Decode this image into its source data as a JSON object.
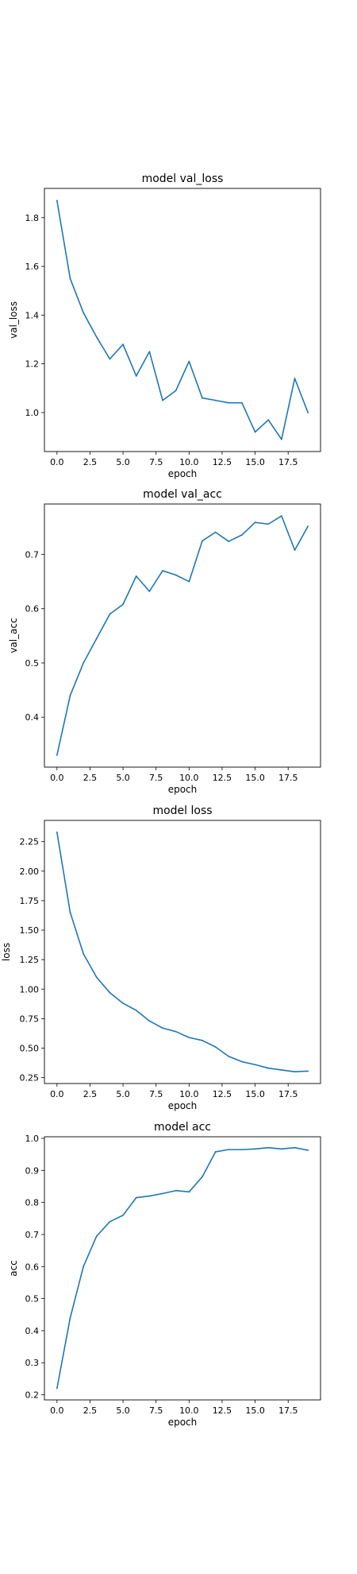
{
  "style": {
    "line_color": "#1f77b4",
    "frame_color": "#000000",
    "background": "#ffffff"
  },
  "chart_data": [
    {
      "type": "line",
      "title": "model val_loss",
      "xlabel": "epoch",
      "ylabel": "val_loss",
      "grid": false,
      "xlim": [
        -0.95,
        19.95
      ],
      "ylim": [
        0.84,
        1.92
      ],
      "xticks": [
        0.0,
        2.5,
        5.0,
        7.5,
        10.0,
        12.5,
        15.0,
        17.5
      ],
      "xtick_labels": [
        "0.0",
        "2.5",
        "5.0",
        "7.5",
        "10.0",
        "12.5",
        "15.0",
        "17.5"
      ],
      "yticks": [
        1.0,
        1.2,
        1.4,
        1.6,
        1.8
      ],
      "ytick_labels": [
        "1.0",
        "1.2",
        "1.4",
        "1.6",
        "1.8"
      ],
      "x": [
        0,
        1,
        2,
        3,
        4,
        5,
        6,
        7,
        8,
        9,
        10,
        11,
        12,
        13,
        14,
        15,
        16,
        17,
        18,
        19
      ],
      "series": [
        {
          "values": [
            1.87,
            1.55,
            1.41,
            1.31,
            1.22,
            1.28,
            1.15,
            1.25,
            1.05,
            1.09,
            1.21,
            1.06,
            1.05,
            1.04,
            1.04,
            0.92,
            0.97,
            0.89,
            1.14,
            1.0
          ]
        }
      ]
    },
    {
      "type": "line",
      "title": "model val_acc",
      "xlabel": "epoch",
      "ylabel": "val_acc",
      "grid": false,
      "xlim": [
        -0.95,
        19.95
      ],
      "ylim": [
        0.308,
        0.793
      ],
      "xticks": [
        0.0,
        2.5,
        5.0,
        7.5,
        10.0,
        12.5,
        15.0,
        17.5
      ],
      "xtick_labels": [
        "0.0",
        "2.5",
        "5.0",
        "7.5",
        "10.0",
        "12.5",
        "15.0",
        "17.5"
      ],
      "yticks": [
        0.4,
        0.5,
        0.6,
        0.7
      ],
      "ytick_labels": [
        "0.4",
        "0.5",
        "0.6",
        "0.7"
      ],
      "x": [
        0,
        1,
        2,
        3,
        4,
        5,
        6,
        7,
        8,
        9,
        10,
        11,
        12,
        13,
        14,
        15,
        16,
        17,
        18,
        19
      ],
      "series": [
        {
          "values": [
            0.33,
            0.44,
            0.5,
            0.545,
            0.59,
            0.608,
            0.66,
            0.632,
            0.67,
            0.662,
            0.65,
            0.725,
            0.741,
            0.724,
            0.736,
            0.759,
            0.756,
            0.771,
            0.708,
            0.752
          ]
        }
      ]
    },
    {
      "type": "line",
      "title": "model loss",
      "xlabel": "epoch",
      "ylabel": "loss",
      "grid": false,
      "xlim": [
        -0.95,
        19.95
      ],
      "ylim": [
        0.2,
        2.43
      ],
      "xticks": [
        0.0,
        2.5,
        5.0,
        7.5,
        10.0,
        12.5,
        15.0,
        17.5
      ],
      "xtick_labels": [
        "0.0",
        "2.5",
        "5.0",
        "7.5",
        "10.0",
        "12.5",
        "15.0",
        "17.5"
      ],
      "yticks": [
        0.25,
        0.5,
        0.75,
        1.0,
        1.25,
        1.5,
        1.75,
        2.0,
        2.25
      ],
      "ytick_labels": [
        "0.25",
        "0.50",
        "0.75",
        "1.00",
        "1.25",
        "1.50",
        "1.75",
        "2.00",
        "2.25"
      ],
      "x": [
        0,
        1,
        2,
        3,
        4,
        5,
        6,
        7,
        8,
        9,
        10,
        11,
        12,
        13,
        14,
        15,
        16,
        17,
        18,
        19
      ],
      "series": [
        {
          "values": [
            2.33,
            1.65,
            1.3,
            1.1,
            0.97,
            0.88,
            0.82,
            0.73,
            0.67,
            0.64,
            0.59,
            0.565,
            0.51,
            0.43,
            0.385,
            0.36,
            0.33,
            0.315,
            0.3,
            0.305
          ]
        }
      ]
    },
    {
      "type": "line",
      "title": "model acc",
      "xlabel": "epoch",
      "ylabel": "acc",
      "grid": false,
      "xlim": [
        -0.95,
        19.95
      ],
      "ylim": [
        0.184,
        1.005
      ],
      "xticks": [
        0.0,
        2.5,
        5.0,
        7.5,
        10.0,
        12.5,
        15.0,
        17.5
      ],
      "xtick_labels": [
        "0.0",
        "2.5",
        "5.0",
        "7.5",
        "10.0",
        "12.5",
        "15.0",
        "17.5"
      ],
      "yticks": [
        0.2,
        0.3,
        0.4,
        0.5,
        0.6,
        0.7,
        0.8,
        0.9,
        1.0
      ],
      "ytick_labels": [
        "0.2",
        "0.3",
        "0.4",
        "0.5",
        "0.6",
        "0.7",
        "0.8",
        "0.9",
        "1.0"
      ],
      "x": [
        0,
        1,
        2,
        3,
        4,
        5,
        6,
        7,
        8,
        9,
        10,
        11,
        12,
        13,
        14,
        15,
        16,
        17,
        18,
        19
      ],
      "series": [
        {
          "values": [
            0.22,
            0.44,
            0.6,
            0.695,
            0.74,
            0.76,
            0.815,
            0.82,
            0.828,
            0.837,
            0.833,
            0.88,
            0.958,
            0.965,
            0.965,
            0.967,
            0.971,
            0.967,
            0.971,
            0.963
          ]
        }
      ]
    }
  ]
}
